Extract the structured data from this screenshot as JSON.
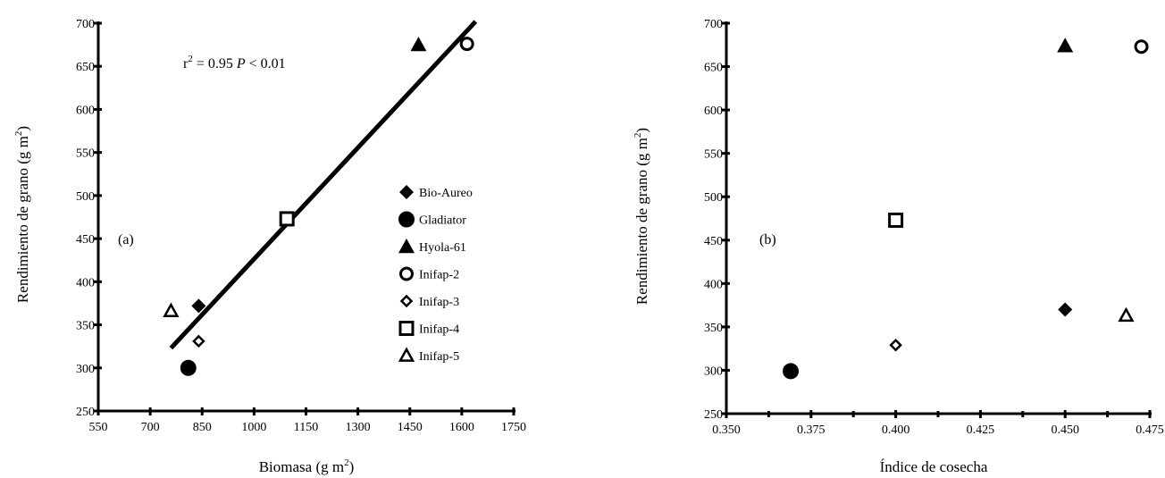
{
  "chart_data": [
    {
      "type": "scatter",
      "panel_label": "(a)",
      "xlabel": "Biomasa (g m",
      "xlabel_sup": "2",
      "xlabel_end": ")",
      "ylabel": "Rendimiento de grano (g m",
      "ylabel_sup": "2",
      "ylabel_end": ")",
      "xlim": [
        550,
        1750
      ],
      "ylim": [
        250,
        700
      ],
      "x_ticks": [
        550,
        700,
        850,
        1000,
        1150,
        1300,
        1450,
        1600,
        1750
      ],
      "y_ticks": [
        250,
        300,
        350,
        400,
        450,
        500,
        550,
        600,
        650,
        700
      ],
      "annotation": {
        "r": "r",
        "r_sup": "2",
        "r_value": " = 0.95 ",
        "p": "P",
        "p_value": " < 0.01"
      },
      "regression": {
        "x1": 760,
        "y1": 323,
        "x2": 1640,
        "y2": 702
      },
      "legend": [
        {
          "name": "Bio-Aureo",
          "marker": "diamond-filled"
        },
        {
          "name": "Gladiator",
          "marker": "circle-filled"
        },
        {
          "name": "Hyola-61",
          "marker": "triangle-filled"
        },
        {
          "name": "Inifap-2",
          "marker": "circle-open"
        },
        {
          "name": "Inifap-3",
          "marker": "diamond-open"
        },
        {
          "name": "Inifap-4",
          "marker": "square-open"
        },
        {
          "name": "Inifap-5",
          "marker": "triangle-open"
        }
      ],
      "points": [
        {
          "series": "Bio-Aureo",
          "marker": "diamond-filled",
          "x": 840,
          "y": 372
        },
        {
          "series": "Gladiator",
          "marker": "circle-filled",
          "x": 810,
          "y": 300
        },
        {
          "series": "Hyola-61",
          "marker": "triangle-filled",
          "x": 1475,
          "y": 675
        },
        {
          "series": "Inifap-2",
          "marker": "circle-open",
          "x": 1615,
          "y": 676
        },
        {
          "series": "Inifap-3",
          "marker": "diamond-open",
          "x": 840,
          "y": 331
        },
        {
          "series": "Inifap-4",
          "marker": "square-open",
          "x": 1095,
          "y": 473
        },
        {
          "series": "Inifap-5",
          "marker": "triangle-open",
          "x": 760,
          "y": 366
        }
      ]
    },
    {
      "type": "scatter",
      "panel_label": "(b)",
      "xlabel": "Índice de cosecha",
      "ylabel": "Rendimiento de grano (g m",
      "ylabel_sup": "2",
      "ylabel_end": ")",
      "xlim": [
        0.35,
        0.475
      ],
      "ylim": [
        250,
        700
      ],
      "x_ticks": [
        "0.350",
        "0.375",
        "0.400",
        "0.425",
        "0.450",
        "0.475"
      ],
      "x_minor_ticks": [
        0.3625,
        0.3875,
        0.4125,
        0.4375,
        0.4625
      ],
      "y_ticks": [
        250,
        300,
        350,
        400,
        450,
        500,
        550,
        600,
        650,
        700
      ],
      "points": [
        {
          "series": "Bio-Aureo",
          "marker": "diamond-filled",
          "x": 0.45,
          "y": 370
        },
        {
          "series": "Gladiator",
          "marker": "circle-filled",
          "x": 0.369,
          "y": 299
        },
        {
          "series": "Hyola-61",
          "marker": "triangle-filled",
          "x": 0.45,
          "y": 674
        },
        {
          "series": "Inifap-2",
          "marker": "circle-open",
          "x": 0.4725,
          "y": 673
        },
        {
          "series": "Inifap-3",
          "marker": "diamond-open",
          "x": 0.4,
          "y": 329
        },
        {
          "series": "Inifap-4",
          "marker": "square-open",
          "x": 0.4,
          "y": 473
        },
        {
          "series": "Inifap-5",
          "marker": "triangle-open",
          "x": 0.468,
          "y": 363
        }
      ]
    }
  ]
}
